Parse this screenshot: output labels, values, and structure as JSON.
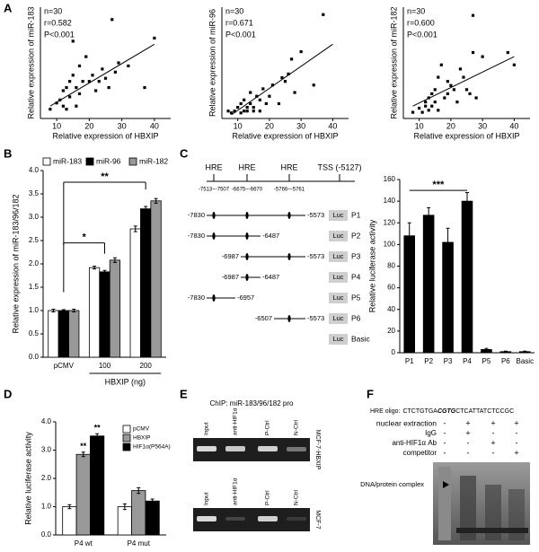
{
  "panel_labels": [
    "A",
    "B",
    "C",
    "D",
    "E",
    "F"
  ],
  "chart_data": [
    {
      "type": "scatter",
      "x_label": "Relative expression of HBXIP",
      "y_label": "Relative expression of miR-183",
      "annotations": [
        "n=30",
        "r=0.582",
        "P<0.001"
      ],
      "x": [
        8,
        10,
        11,
        12,
        12,
        13,
        13,
        14,
        14,
        15,
        15,
        16,
        16,
        17,
        17,
        18,
        19,
        20,
        21,
        22,
        23,
        24,
        25,
        26,
        27,
        28,
        29,
        32,
        37,
        40
      ],
      "y": [
        0.5,
        1.5,
        2,
        3.5,
        1,
        0.5,
        4,
        2.5,
        5,
        11.5,
        6,
        1,
        4,
        3,
        7.5,
        5,
        9,
        5,
        6,
        3.5,
        5,
        7,
        5.5,
        4,
        15,
        6.5,
        8,
        7.5,
        4,
        12
      ],
      "xlim": [
        5,
        45
      ],
      "ylim": [
        -1,
        17
      ],
      "xticks": [
        10,
        20,
        30,
        40
      ],
      "trend": {
        "x": [
          8,
          40
        ],
        "y": [
          1,
          11
        ]
      },
      "color": "#000000"
    },
    {
      "type": "scatter",
      "x_label": "Relative expression of HBXIP",
      "y_label": "Relative expression of miR-96",
      "annotations": [
        "n=30",
        "r=0.671",
        "P<0.001"
      ],
      "x": [
        7,
        8,
        9,
        10,
        11,
        11,
        12,
        12,
        13,
        13,
        14,
        14,
        15,
        15,
        16,
        17,
        17,
        18,
        19,
        20,
        21,
        23,
        24,
        25,
        26,
        27,
        28,
        30,
        34,
        37
      ],
      "y": [
        1,
        0.5,
        1,
        2,
        0.5,
        3,
        1,
        4,
        2,
        1,
        6,
        3,
        2,
        1,
        5,
        4,
        1,
        7,
        3,
        5,
        8,
        3,
        10,
        9,
        11,
        15,
        6,
        17,
        8,
        27
      ],
      "xlim": [
        5,
        45
      ],
      "ylim": [
        -1,
        29
      ],
      "xticks": [
        10,
        20,
        30,
        40
      ],
      "trend": {
        "x": [
          8,
          40
        ],
        "y": [
          0,
          19
        ]
      },
      "color": "#000000"
    },
    {
      "type": "scatter",
      "x_label": "Relative expression of HBXIP",
      "y_label": "Relative expression of miR-182",
      "annotations": [
        "n=30",
        "r=0.600",
        "P<0.001"
      ],
      "x": [
        8,
        10,
        11,
        12,
        12,
        13,
        13,
        14,
        14,
        15,
        15,
        16,
        16,
        17,
        18,
        19,
        19,
        20,
        21,
        22,
        23,
        24,
        25,
        26,
        27,
        27,
        28,
        30,
        38,
        40
      ],
      "y": [
        0.5,
        1.5,
        0.5,
        2,
        3,
        1,
        4,
        5,
        2,
        6,
        3,
        9,
        1,
        12,
        4,
        8,
        5,
        7,
        6,
        3,
        11,
        9,
        6,
        5,
        24,
        15,
        4,
        14,
        15,
        12
      ],
      "xlim": [
        5,
        45
      ],
      "ylim": [
        -1,
        26
      ],
      "xticks": [
        10,
        20,
        30,
        40
      ],
      "trend": {
        "x": [
          8,
          40
        ],
        "y": [
          2,
          14
        ]
      },
      "color": "#000000"
    },
    {
      "type": "bar",
      "y_label": "Relative expression of miR-183/96/182",
      "x_label": "HBXIP (ng)",
      "categories": [
        "pCMV",
        "100",
        "200"
      ],
      "series": [
        {
          "name": "miR-183",
          "color": "#ffffff",
          "values": [
            1,
            1.92,
            2.75
          ],
          "errors": [
            0.03,
            0.03,
            0.06
          ]
        },
        {
          "name": "miR-96",
          "color": "#000000",
          "values": [
            1,
            1.83,
            3.18
          ],
          "errors": [
            0.02,
            0.03,
            0.05
          ]
        },
        {
          "name": "miR-182",
          "color": "#999999",
          "values": [
            1,
            2.08,
            3.35
          ],
          "errors": [
            0.03,
            0.05,
            0.05
          ]
        }
      ],
      "ylim": [
        0,
        4
      ],
      "yticks": [
        {
          "value": 0,
          "label": "0.0"
        },
        {
          "value": 0.5,
          "label": "0.5"
        },
        {
          "value": 1,
          "label": "1.0"
        },
        {
          "value": 1.5,
          "label": "1.5"
        },
        {
          "value": 2,
          "label": "2.0"
        },
        {
          "value": 2.5,
          "label": "2.5"
        },
        {
          "value": 3,
          "label": "3.0"
        },
        {
          "value": 3.5,
          "label": "3.5"
        },
        {
          "value": 4,
          "label": "4.0"
        }
      ],
      "legend": "top",
      "annotations": [
        "*",
        "**"
      ]
    },
    {
      "type": "bar",
      "y_label": "Relative luciferase activity",
      "categories": [
        "P1",
        "P2",
        "P3",
        "P4",
        "P5",
        "P6",
        "Basic"
      ],
      "values": [
        108,
        127,
        102,
        140,
        3,
        1,
        1
      ],
      "errors": [
        12,
        7,
        13,
        8,
        1,
        0.5,
        0.5
      ],
      "color": "#000000",
      "ylim": [
        0,
        160
      ],
      "yticks": [
        0,
        20,
        40,
        60,
        80,
        100,
        120,
        140,
        160
      ],
      "annotations": [
        "***"
      ]
    },
    {
      "type": "bar",
      "y_label": "Relative luciferase activity",
      "categories": [
        "P4 wt",
        "P4 mut"
      ],
      "series": [
        {
          "name": "pCMV",
          "color": "#ffffff",
          "values": [
            1,
            1
          ],
          "errors": [
            0.07,
            0.1
          ]
        },
        {
          "name": "HBXIP",
          "color": "#999999",
          "values": [
            2.85,
            1.57
          ],
          "errors": [
            0.08,
            0.1
          ]
        },
        {
          "name": "HIF1α(P564A)",
          "color": "#000000",
          "values": [
            3.5,
            1.2
          ],
          "errors": [
            0.08,
            0.07
          ]
        }
      ],
      "ylim": [
        0,
        4
      ],
      "yticks": [
        {
          "value": 0,
          "label": "0.0"
        },
        {
          "value": 1,
          "label": "1.0"
        },
        {
          "value": 2,
          "label": "2.0"
        },
        {
          "value": 3,
          "label": "3.0"
        },
        {
          "value": 4,
          "label": "4.0"
        }
      ],
      "legend": "upper right",
      "annotations": [
        "**",
        "**"
      ]
    }
  ],
  "promoter_diagram": {
    "hre_labels": [
      "HRE",
      "HRE",
      "HRE"
    ],
    "hre_positions": [
      "-7513~-7507",
      "-6675~-6670",
      "-5766~-5761"
    ],
    "tss": "TSS (-5127)",
    "reporter": "Luc",
    "constructs": [
      {
        "start": "-7830",
        "end": "-5573",
        "name": "P1"
      },
      {
        "start": "-7830",
        "end": "-6487",
        "name": "P2"
      },
      {
        "start": "-6987",
        "end": "-5573",
        "name": "P3"
      },
      {
        "start": "-6987",
        "end": "-6487",
        "name": "P4"
      },
      {
        "start": "-7830",
        "end": "-6957",
        "name": "P5"
      },
      {
        "start": "-6507",
        "end": "-5573",
        "name": "P6"
      },
      {
        "name": "Basic"
      }
    ]
  },
  "chip": {
    "title": "ChIP: miR-183/96/182 pro",
    "lanes": [
      "Input",
      "anti-HIF1α",
      "P-Ctrl",
      "N-Ctrl"
    ],
    "cell_lines": [
      "MCF-7-HBXIP",
      "MCF-7"
    ]
  },
  "emsa": {
    "oligo_prefix": "HRE oligo:",
    "oligo": [
      "CTCTGTGA",
      "CGTG",
      "CTCATTATCTCCGC"
    ],
    "conditions": [
      {
        "label": "nuclear extraction",
        "signs": [
          "-",
          "+",
          "+",
          "+"
        ]
      },
      {
        "label": "IgG",
        "signs": [
          "-",
          "+",
          "-",
          "-"
        ]
      },
      {
        "label": "anti-HIF1α Ab",
        "signs": [
          "-",
          "-",
          "+",
          "-"
        ]
      },
      {
        "label": "competitor",
        "signs": [
          "-",
          "-",
          "-",
          "+"
        ]
      }
    ],
    "complex_label": "DNA/protein complex"
  }
}
